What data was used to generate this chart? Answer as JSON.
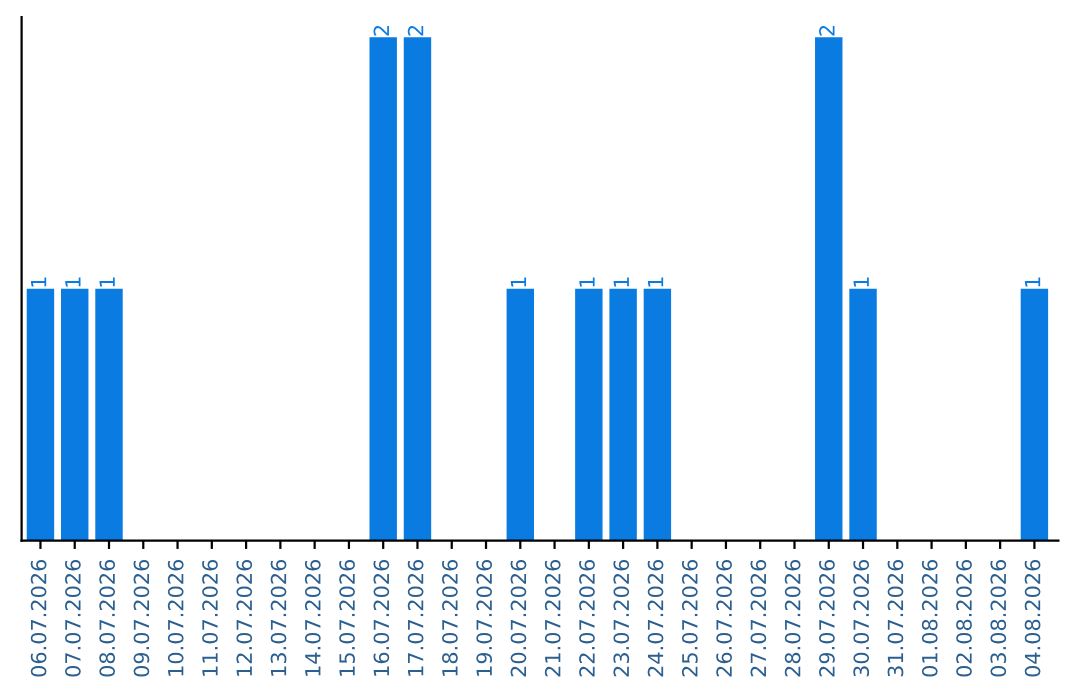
{
  "chart_data": {
    "type": "bar",
    "categories": [
      "06.07.2026",
      "07.07.2026",
      "08.07.2026",
      "09.07.2026",
      "10.07.2026",
      "11.07.2026",
      "12.07.2026",
      "13.07.2026",
      "14.07.2026",
      "15.07.2026",
      "16.07.2026",
      "17.07.2026",
      "18.07.2026",
      "19.07.2026",
      "20.07.2026",
      "21.07.2026",
      "22.07.2026",
      "23.07.2026",
      "24.07.2026",
      "25.07.2026",
      "26.07.2026",
      "27.07.2026",
      "28.07.2026",
      "29.07.2026",
      "30.07.2026",
      "31.07.2026",
      "01.08.2026",
      "02.08.2026",
      "03.08.2026",
      "04.08.2026"
    ],
    "values": [
      1,
      1,
      1,
      0,
      0,
      0,
      0,
      0,
      0,
      0,
      2,
      2,
      0,
      0,
      1,
      0,
      1,
      1,
      1,
      0,
      0,
      0,
      0,
      2,
      1,
      0,
      0,
      0,
      0,
      1
    ],
    "value_labels": [
      "1",
      "1",
      "1",
      null,
      null,
      null,
      null,
      null,
      null,
      null,
      "2",
      "2",
      null,
      null,
      "1",
      null,
      "1",
      "1",
      "1",
      null,
      null,
      null,
      null,
      "2",
      "1",
      null,
      null,
      null,
      null,
      "1"
    ],
    "color": "#0a7be0",
    "grid": false,
    "legend": false,
    "tick_labels": "x"
  }
}
